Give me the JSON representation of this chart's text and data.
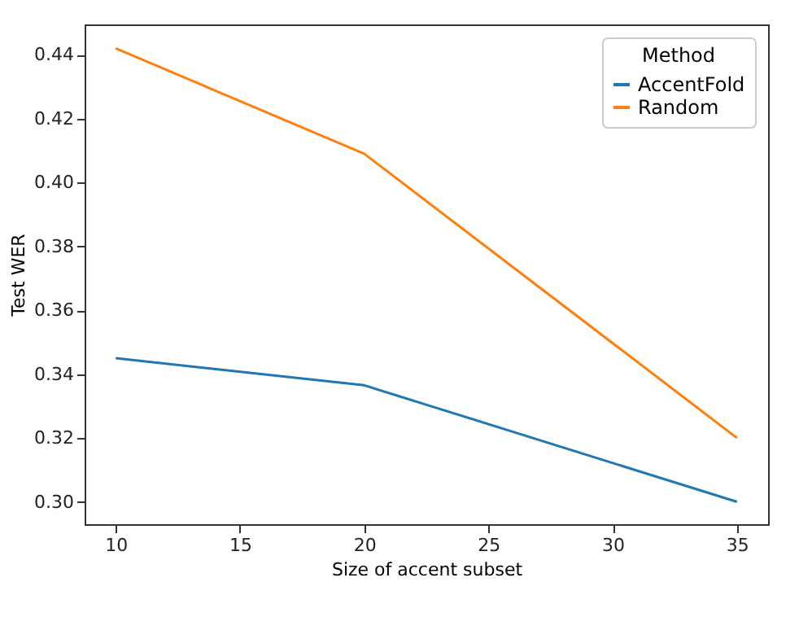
{
  "chart_data": {
    "type": "line",
    "xlabel": "Size of accent subset",
    "ylabel": "Test WER",
    "legend_title": "Method",
    "legend": "top right",
    "grid": false,
    "marker": "none",
    "line_style": "solid",
    "x": [
      10,
      20,
      35
    ],
    "series": [
      {
        "name": "AccentFold",
        "color": "#1f77b4",
        "values": [
          0.345,
          0.3365,
          0.3
        ]
      },
      {
        "name": "Random",
        "color": "#ff7f0e",
        "values": [
          0.442,
          0.409,
          0.32
        ]
      }
    ],
    "xlim": [
      8.75,
      36.25
    ],
    "xticks": [
      10,
      15,
      20,
      25,
      30,
      35
    ],
    "ylim": [
      0.293,
      0.4495
    ],
    "yticks": [
      {
        "value": 0.3,
        "label": "0.30"
      },
      0.32,
      0.34,
      0.36,
      0.38,
      {
        "value": 0.4,
        "label": "0.40"
      },
      0.42,
      0.44
    ]
  }
}
